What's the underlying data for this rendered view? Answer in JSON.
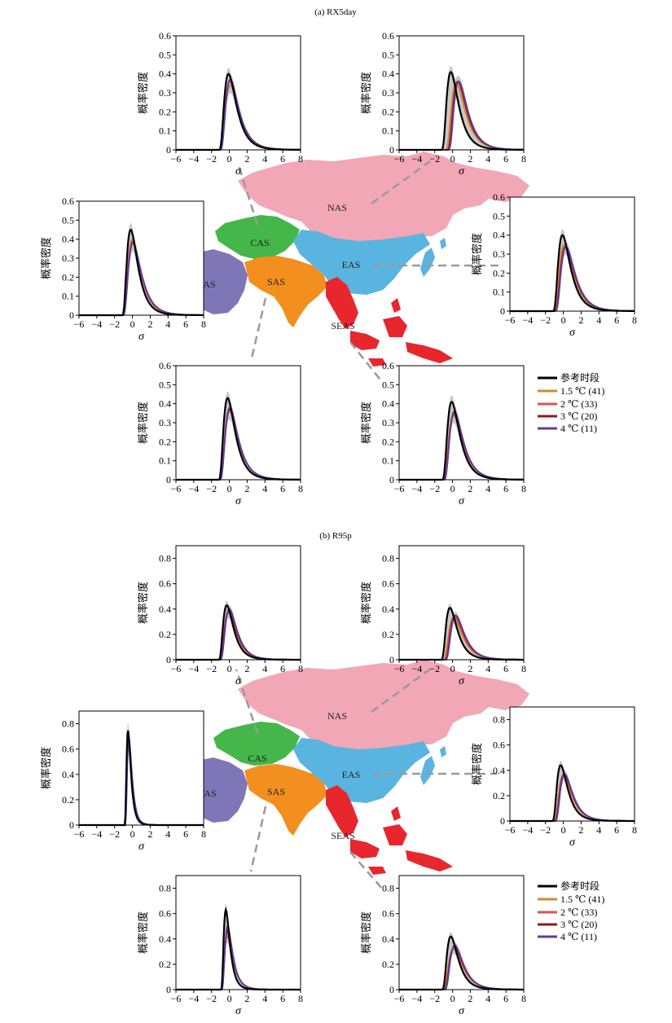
{
  "colors": {
    "series": [
      "#000000",
      "#d08a2c",
      "#d9534f",
      "#8b1a1a",
      "#5b3f9e"
    ],
    "envelope": "#b0b0b0",
    "regions": {
      "NAS": "#f2a7b6",
      "CAS": "#45b649",
      "WAS": "#7f76b8",
      "SAS": "#f28f1e",
      "EAS": "#5ab4e0",
      "SEAS": "#e8262d"
    },
    "leader": "#9a9a9a"
  },
  "legend": {
    "entries": [
      "参考时段",
      "1.5 ℃ (41)",
      "2 ℃ (33)",
      "3 ℃ (20)",
      "4 ℃ (11)"
    ]
  },
  "chart_data": [
    {
      "type": "line",
      "title": "(a) RX5day",
      "xlabel": "σ",
      "ylabel": "概率密度",
      "xlim": [
        -6,
        8
      ],
      "xticks": [
        "−6",
        "−4",
        "−2",
        "0",
        "2",
        "4",
        "6",
        "8"
      ],
      "regions": [
        "CAS",
        "NAS",
        "WAS",
        "EAS",
        "SAS",
        "SEAS"
      ],
      "panels": [
        {
          "region": "CAS",
          "ylim": [
            0,
            0.6
          ],
          "yticks": [
            "0",
            "0.1",
            "0.2",
            "0.3",
            "0.4",
            "0.5",
            "0.6"
          ],
          "peaks": [
            0.4,
            0.34,
            0.36,
            0.37,
            0.37
          ],
          "centers": [
            -0.1,
            0.1,
            0.05,
            0.1,
            0.1
          ],
          "widths": [
            1.0,
            1.12,
            1.08,
            1.06,
            1.05
          ]
        },
        {
          "region": "NAS",
          "ylim": [
            0,
            0.6
          ],
          "yticks": [
            "0",
            "0.1",
            "0.2",
            "0.3",
            "0.4",
            "0.5",
            "0.6"
          ],
          "peaks": [
            0.41,
            0.35,
            0.36,
            0.36,
            0.36
          ],
          "centers": [
            -0.2,
            0.4,
            0.55,
            0.6,
            0.7
          ],
          "widths": [
            0.98,
            1.12,
            1.1,
            1.1,
            1.1
          ]
        },
        {
          "region": "WAS",
          "ylim": [
            0,
            0.6
          ],
          "yticks": [
            "0",
            "0.1",
            "0.2",
            "0.3",
            "0.4",
            "0.5",
            "0.6"
          ],
          "peaks": [
            0.45,
            0.4,
            0.39,
            0.38,
            0.38
          ],
          "centers": [
            -0.2,
            0.0,
            0.0,
            0.05,
            0.05
          ],
          "widths": [
            0.9,
            1.0,
            1.02,
            1.05,
            1.05
          ]
        },
        {
          "region": "EAS",
          "ylim": [
            0,
            0.6
          ],
          "yticks": [
            "0",
            "0.1",
            "0.2",
            "0.3",
            "0.4",
            "0.5",
            "0.6"
          ],
          "peaks": [
            0.4,
            0.35,
            0.34,
            0.34,
            0.34
          ],
          "centers": [
            -0.1,
            0.1,
            0.2,
            0.25,
            0.3
          ],
          "widths": [
            1.0,
            1.1,
            1.12,
            1.12,
            1.12
          ]
        },
        {
          "region": "SAS",
          "ylim": [
            0,
            0.6
          ],
          "yticks": [
            "0",
            "0.1",
            "0.2",
            "0.3",
            "0.4",
            "0.5",
            "0.6"
          ],
          "peaks": [
            0.43,
            0.36,
            0.37,
            0.37,
            0.38
          ],
          "centers": [
            -0.2,
            0.0,
            0.0,
            0.05,
            0.05
          ],
          "widths": [
            0.95,
            1.08,
            1.06,
            1.05,
            1.04
          ]
        },
        {
          "region": "SEAS",
          "ylim": [
            0,
            0.6
          ],
          "yticks": [
            "0",
            "0.1",
            "0.2",
            "0.3",
            "0.4",
            "0.5",
            "0.6"
          ],
          "peaks": [
            0.41,
            0.34,
            0.34,
            0.35,
            0.36
          ],
          "centers": [
            -0.1,
            0.1,
            0.15,
            0.2,
            0.2
          ],
          "widths": [
            1.0,
            1.12,
            1.12,
            1.1,
            1.08
          ]
        }
      ]
    },
    {
      "type": "line",
      "title": "(b) R95p",
      "xlabel": "σ",
      "ylabel": "概率密度",
      "xlim": [
        -6,
        8
      ],
      "xticks": [
        "−6",
        "−4",
        "−2",
        "0",
        "2",
        "4",
        "6",
        "8"
      ],
      "regions": [
        "CAS",
        "NAS",
        "WAS",
        "EAS",
        "SAS",
        "SEAS"
      ],
      "panels": [
        {
          "region": "CAS",
          "ylim": [
            0,
            0.9
          ],
          "yticks": [
            "0",
            "0.2",
            "0.4",
            "0.6",
            "0.8"
          ],
          "peaks": [
            0.43,
            0.37,
            0.38,
            0.39,
            0.4
          ],
          "centers": [
            -0.3,
            -0.1,
            -0.1,
            -0.05,
            0.0
          ],
          "widths": [
            0.85,
            0.98,
            0.96,
            0.95,
            0.95
          ]
        },
        {
          "region": "NAS",
          "ylim": [
            0,
            0.9
          ],
          "yticks": [
            "0",
            "0.2",
            "0.4",
            "0.6",
            "0.8"
          ],
          "peaks": [
            0.41,
            0.33,
            0.34,
            0.35,
            0.35
          ],
          "centers": [
            -0.3,
            0.1,
            0.2,
            0.3,
            0.35
          ],
          "widths": [
            0.92,
            1.1,
            1.08,
            1.08,
            1.08
          ]
        },
        {
          "region": "WAS",
          "ylim": [
            0,
            0.9
          ],
          "yticks": [
            "0",
            "0.2",
            "0.4",
            "0.6",
            "0.8"
          ],
          "peaks": [
            0.75,
            0.7,
            0.72,
            0.7,
            0.68
          ],
          "centers": [
            -0.5,
            -0.45,
            -0.45,
            -0.45,
            -0.4
          ],
          "widths": [
            0.35,
            0.38,
            0.37,
            0.38,
            0.39
          ]
        },
        {
          "region": "EAS",
          "ylim": [
            0,
            0.9
          ],
          "yticks": [
            "0",
            "0.2",
            "0.4",
            "0.6",
            "0.8"
          ],
          "peaks": [
            0.44,
            0.36,
            0.37,
            0.37,
            0.37
          ],
          "centers": [
            -0.3,
            0.0,
            0.05,
            0.1,
            0.15
          ],
          "widths": [
            0.88,
            1.02,
            1.0,
            1.0,
            1.0
          ]
        },
        {
          "region": "SAS",
          "ylim": [
            0,
            0.9
          ],
          "yticks": [
            "0",
            "0.2",
            "0.4",
            "0.6",
            "0.8"
          ],
          "peaks": [
            0.63,
            0.42,
            0.45,
            0.47,
            0.5
          ],
          "centers": [
            -0.4,
            -0.25,
            -0.25,
            -0.2,
            -0.2
          ],
          "widths": [
            0.5,
            0.7,
            0.66,
            0.64,
            0.62
          ]
        },
        {
          "region": "SEAS",
          "ylim": [
            0,
            0.9
          ],
          "yticks": [
            "0",
            "0.2",
            "0.4",
            "0.6",
            "0.8"
          ],
          "peaks": [
            0.42,
            0.32,
            0.33,
            0.34,
            0.35
          ],
          "centers": [
            -0.2,
            0.1,
            0.15,
            0.2,
            0.25
          ],
          "widths": [
            0.92,
            1.12,
            1.1,
            1.08,
            1.06
          ]
        }
      ]
    }
  ]
}
